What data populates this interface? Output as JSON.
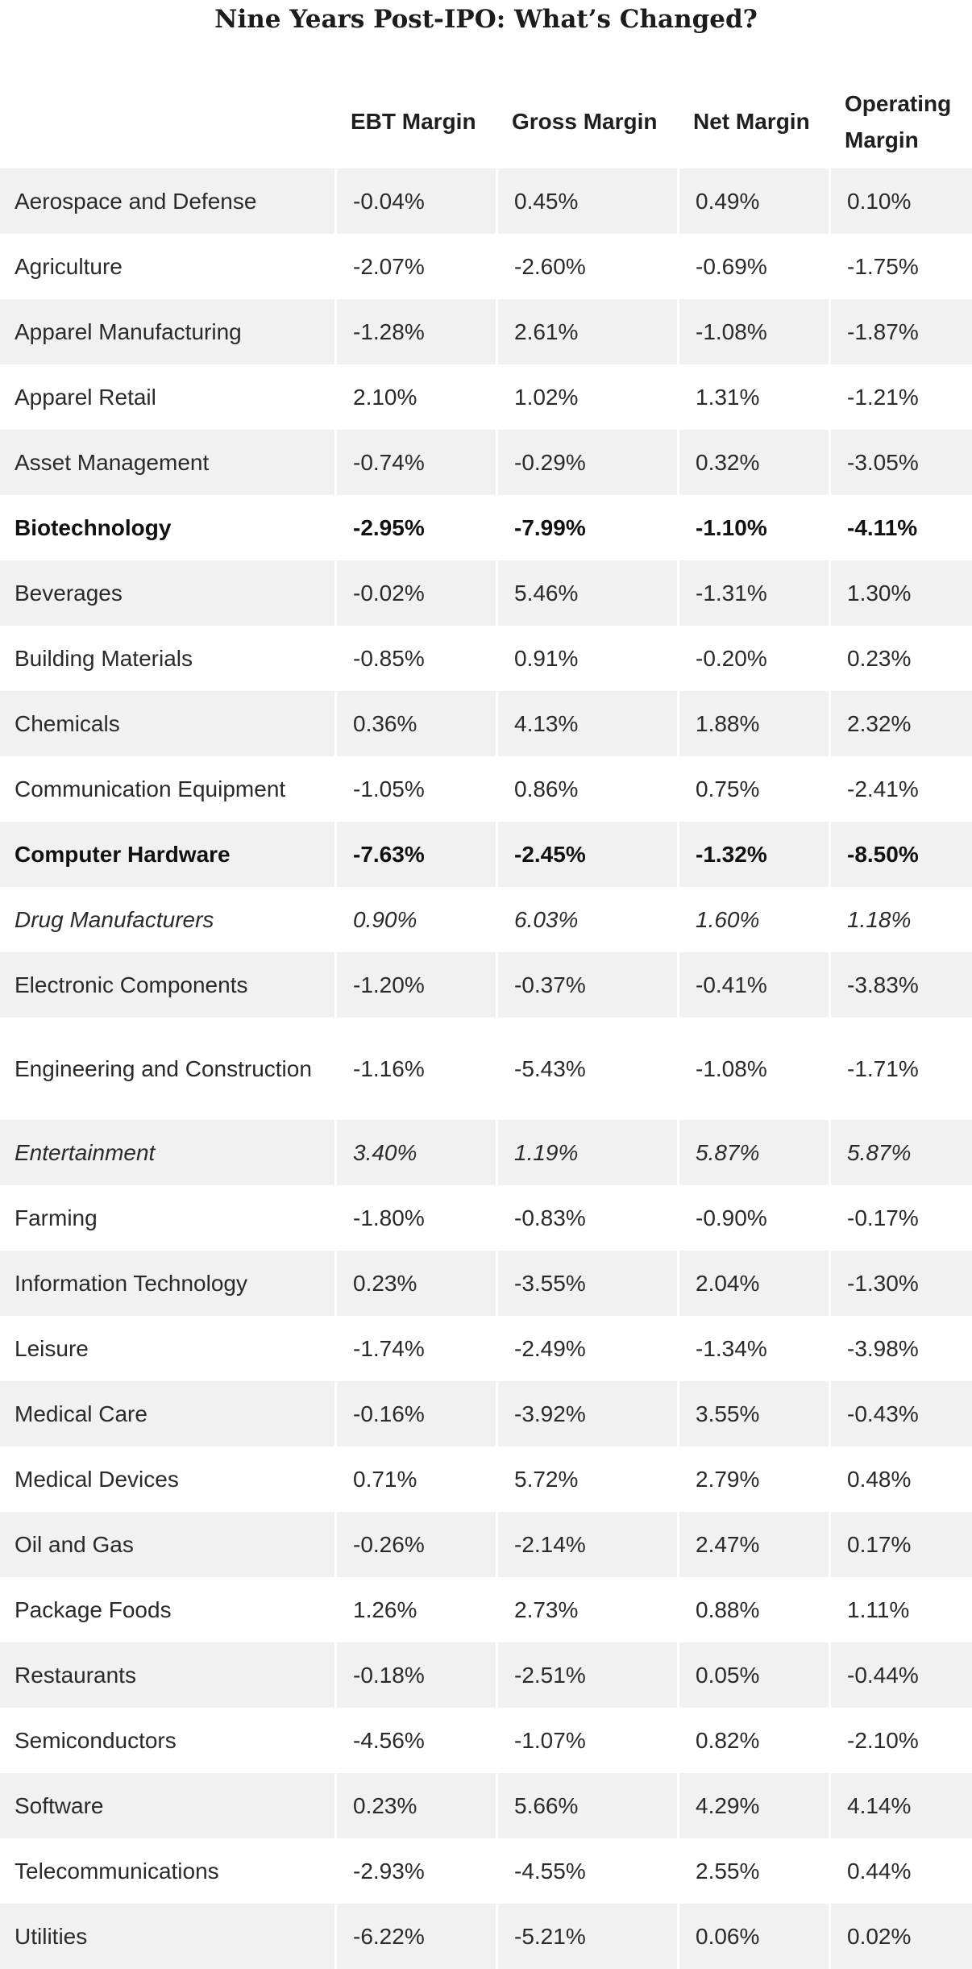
{
  "page": {
    "title": "Nine Years Post-IPO: What’s Changed?"
  },
  "table": {
    "headers": [
      "",
      "EBT Margin",
      "Gross Margin",
      "Net Margin",
      "Operating Margin"
    ],
    "rows": [
      {
        "category": "Aerospace and Defense",
        "ebt": "-0.04%",
        "gross": "0.45%",
        "net": "0.49%",
        "operating": "0.10%",
        "style": "normal"
      },
      {
        "category": "Agriculture",
        "ebt": "-2.07%",
        "gross": "-2.60%",
        "net": "-0.69%",
        "operating": "-1.75%",
        "style": "normal"
      },
      {
        "category": "Apparel Manufacturing",
        "ebt": "-1.28%",
        "gross": "2.61%",
        "net": "-1.08%",
        "operating": "-1.87%",
        "style": "normal"
      },
      {
        "category": "Apparel Retail",
        "ebt": "2.10%",
        "gross": "1.02%",
        "net": "1.31%",
        "operating": "-1.21%",
        "style": "normal"
      },
      {
        "category": "Asset Management",
        "ebt": "-0.74%",
        "gross": "-0.29%",
        "net": "0.32%",
        "operating": "-3.05%",
        "style": "normal"
      },
      {
        "category": "Biotechnology",
        "ebt": "-2.95%",
        "gross": "-7.99%",
        "net": "-1.10%",
        "operating": "-4.11%",
        "style": "bold"
      },
      {
        "category": "Beverages",
        "ebt": "-0.02%",
        "gross": "5.46%",
        "net": "-1.31%",
        "operating": "1.30%",
        "style": "normal"
      },
      {
        "category": "Building Materials",
        "ebt": "-0.85%",
        "gross": "0.91%",
        "net": "-0.20%",
        "operating": "0.23%",
        "style": "normal"
      },
      {
        "category": "Chemicals",
        "ebt": "0.36%",
        "gross": "4.13%",
        "net": "1.88%",
        "operating": "2.32%",
        "style": "normal"
      },
      {
        "category": "Communication Equipment",
        "ebt": "-1.05%",
        "gross": "0.86%",
        "net": "0.75%",
        "operating": "-2.41%",
        "style": "normal"
      },
      {
        "category": "Computer Hardware",
        "ebt": "-7.63%",
        "gross": "-2.45%",
        "net": "-1.32%",
        "operating": "-8.50%",
        "style": "bold"
      },
      {
        "category": "Drug Manufacturers",
        "ebt": "0.90%",
        "gross": "6.03%",
        "net": "1.60%",
        "operating": "1.18%",
        "style": "italic"
      },
      {
        "category": "Electronic Components",
        "ebt": "-1.20%",
        "gross": "-0.37%",
        "net": "-0.41%",
        "operating": "-3.83%",
        "style": "normal"
      },
      {
        "category": "Engineering and Construction",
        "ebt": "-1.16%",
        "gross": "-5.43%",
        "net": "-1.08%",
        "operating": "-1.71%",
        "style": "normal"
      },
      {
        "category": "Entertainment",
        "ebt": "3.40%",
        "gross": "1.19%",
        "net": "5.87%",
        "operating": "5.87%",
        "style": "italic"
      },
      {
        "category": "Farming",
        "ebt": "-1.80%",
        "gross": "-0.83%",
        "net": "-0.90%",
        "operating": "-0.17%",
        "style": "normal"
      },
      {
        "category": "Information Technology",
        "ebt": "0.23%",
        "gross": "-3.55%",
        "net": "2.04%",
        "operating": "-1.30%",
        "style": "normal"
      },
      {
        "category": "Leisure",
        "ebt": "-1.74%",
        "gross": "-2.49%",
        "net": "-1.34%",
        "operating": "-3.98%",
        "style": "normal"
      },
      {
        "category": "Medical Care",
        "ebt": "-0.16%",
        "gross": "-3.92%",
        "net": "3.55%",
        "operating": "-0.43%",
        "style": "normal"
      },
      {
        "category": "Medical Devices",
        "ebt": "0.71%",
        "gross": "5.72%",
        "net": "2.79%",
        "operating": "0.48%",
        "style": "normal"
      },
      {
        "category": "Oil and Gas",
        "ebt": "-0.26%",
        "gross": "-2.14%",
        "net": "2.47%",
        "operating": "0.17%",
        "style": "normal"
      },
      {
        "category": "Package Foods",
        "ebt": "1.26%",
        "gross": "2.73%",
        "net": "0.88%",
        "operating": "1.11%",
        "style": "normal"
      },
      {
        "category": "Restaurants",
        "ebt": "-0.18%",
        "gross": "-2.51%",
        "net": "0.05%",
        "operating": "-0.44%",
        "style": "normal"
      },
      {
        "category": "Semiconductors",
        "ebt": "-4.56%",
        "gross": "-1.07%",
        "net": "0.82%",
        "operating": "-2.10%",
        "style": "normal"
      },
      {
        "category": "Software",
        "ebt": "0.23%",
        "gross": "5.66%",
        "net": "4.29%",
        "operating": "4.14%",
        "style": "normal"
      },
      {
        "category": "Telecommunications",
        "ebt": "-2.93%",
        "gross": "-4.55%",
        "net": "2.55%",
        "operating": "0.44%",
        "style": "normal"
      },
      {
        "category": "Utilities",
        "ebt": "-6.22%",
        "gross": "-5.21%",
        "net": "0.06%",
        "operating": "0.02%",
        "style": "normal"
      }
    ]
  },
  "colors": {
    "row_shade": "#f1f1f1",
    "text": "#222222"
  }
}
